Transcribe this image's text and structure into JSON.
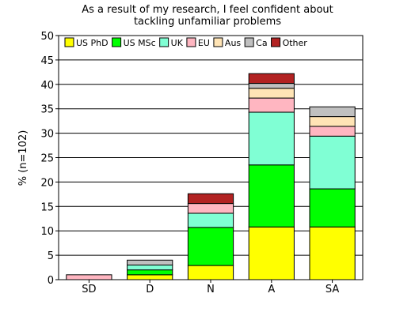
{
  "chart_data": {
    "type": "bar",
    "stacked": true,
    "title": "As a result of my research, I feel confident about tackling unfamiliar problems",
    "title_lines": [
      "As a result of my research, I feel confident about",
      "tackling unfamiliar problems"
    ],
    "xlabel": "",
    "ylabel": "% (n=102)",
    "ylim": [
      0,
      50
    ],
    "yticks": [
      0,
      5,
      10,
      15,
      20,
      25,
      30,
      35,
      40,
      45,
      50
    ],
    "grid": true,
    "legend_position": "top",
    "categories": [
      "SD",
      "D",
      "N",
      "A",
      "SA"
    ],
    "series": [
      {
        "name": "US PhD",
        "color": "#ffff00",
        "values": [
          0,
          1.0,
          2.9,
          10.8,
          10.8
        ]
      },
      {
        "name": "US MSc",
        "color": "#00ff00",
        "values": [
          0,
          1.0,
          7.8,
          12.7,
          7.8
        ]
      },
      {
        "name": "UK",
        "color": "#80ffd4",
        "values": [
          0,
          1.0,
          2.9,
          10.8,
          10.8
        ]
      },
      {
        "name": "EU",
        "color": "#ffb6c1",
        "values": [
          1.0,
          0,
          2.0,
          2.9,
          2.0
        ]
      },
      {
        "name": "Aus",
        "color": "#ffe4b5",
        "values": [
          0,
          0,
          0,
          2.0,
          2.0
        ]
      },
      {
        "name": "Ca",
        "color": "#c0c0c0",
        "values": [
          0,
          1.0,
          0,
          1.0,
          2.0
        ]
      },
      {
        "name": "Other",
        "color": "#b22222",
        "values": [
          0,
          0,
          2.0,
          2.0,
          0
        ]
      }
    ]
  }
}
